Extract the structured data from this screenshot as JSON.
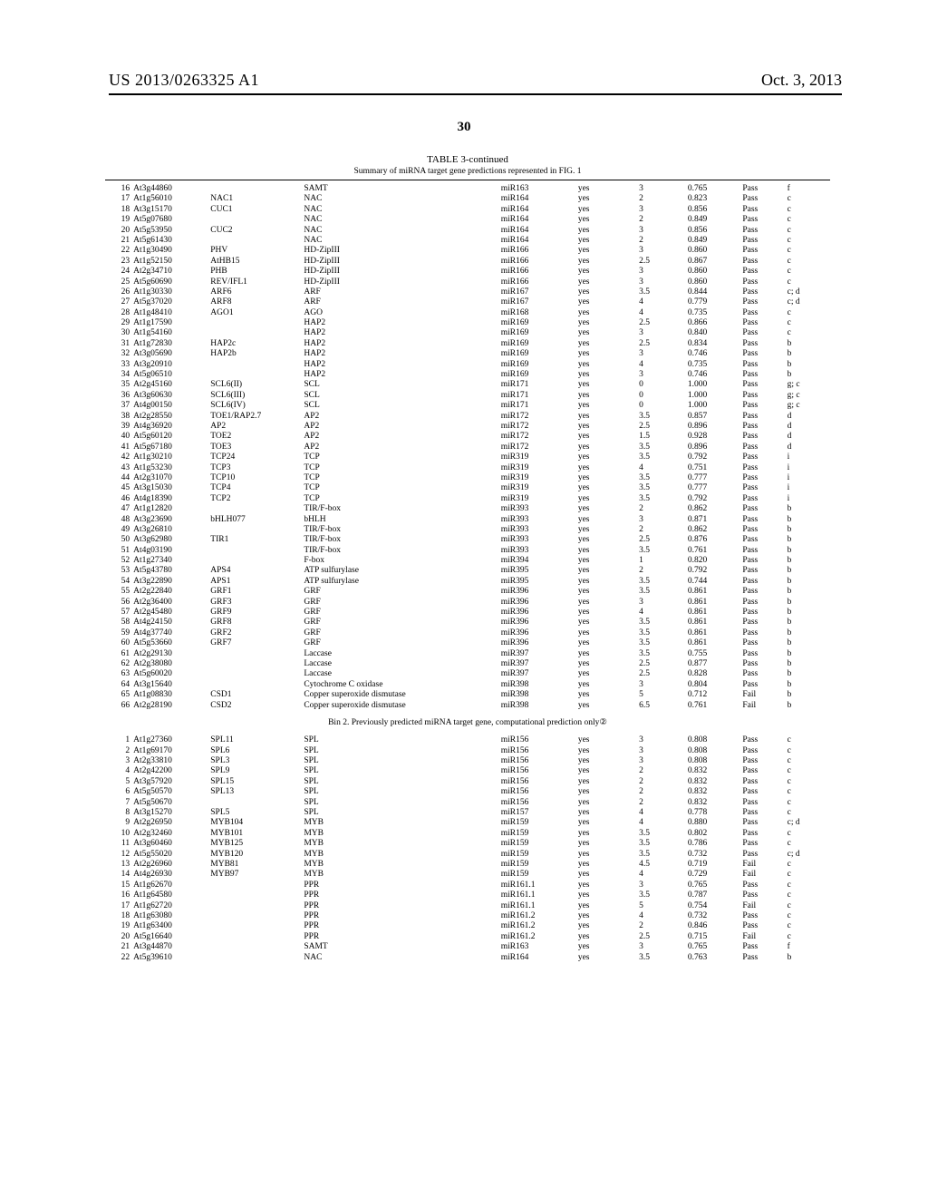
{
  "header": {
    "pub_num": "US 2013/0263325 A1",
    "pub_date": "Oct. 3, 2013",
    "page_num": "30"
  },
  "table": {
    "hdr": "TABLE 3-continued",
    "sub": "Summary of miRNA target gene predictions represented in FIG. 1",
    "section2": "Bin 2. Previously predicted miRNA target gene, computational prediction only②",
    "rows1": [
      {
        "i": "16",
        "g": "At3g44860",
        "a": "",
        "f": "SAMT",
        "m": "miR163",
        "c": "yes",
        "s1": "3",
        "s2": "0.765",
        "p": "Pass",
        "r": "f"
      },
      {
        "i": "17",
        "g": "At1g56010",
        "a": "NAC1",
        "f": "NAC",
        "m": "miR164",
        "c": "yes",
        "s1": "2",
        "s2": "0.823",
        "p": "Pass",
        "r": "c"
      },
      {
        "i": "18",
        "g": "At3g15170",
        "a": "CUC1",
        "f": "NAC",
        "m": "miR164",
        "c": "yes",
        "s1": "3",
        "s2": "0.856",
        "p": "Pass",
        "r": "c"
      },
      {
        "i": "19",
        "g": "At5g07680",
        "a": "",
        "f": "NAC",
        "m": "miR164",
        "c": "yes",
        "s1": "2",
        "s2": "0.849",
        "p": "Pass",
        "r": "c"
      },
      {
        "i": "20",
        "g": "At5g53950",
        "a": "CUC2",
        "f": "NAC",
        "m": "miR164",
        "c": "yes",
        "s1": "3",
        "s2": "0.856",
        "p": "Pass",
        "r": "c"
      },
      {
        "i": "21",
        "g": "At5g61430",
        "a": "",
        "f": "NAC",
        "m": "miR164",
        "c": "yes",
        "s1": "2",
        "s2": "0.849",
        "p": "Pass",
        "r": "c"
      },
      {
        "i": "22",
        "g": "At1g30490",
        "a": "PHV",
        "f": "HD-ZipIII",
        "m": "miR166",
        "c": "yes",
        "s1": "3",
        "s2": "0.860",
        "p": "Pass",
        "r": "c"
      },
      {
        "i": "23",
        "g": "At1g52150",
        "a": "AtHB15",
        "f": "HD-ZipIII",
        "m": "miR166",
        "c": "yes",
        "s1": "2.5",
        "s2": "0.867",
        "p": "Pass",
        "r": "c"
      },
      {
        "i": "24",
        "g": "At2g34710",
        "a": "PHB",
        "f": "HD-ZipIII",
        "m": "miR166",
        "c": "yes",
        "s1": "3",
        "s2": "0.860",
        "p": "Pass",
        "r": "c"
      },
      {
        "i": "25",
        "g": "At5g60690",
        "a": "REV/IFL1",
        "f": "HD-ZipIII",
        "m": "miR166",
        "c": "yes",
        "s1": "3",
        "s2": "0.860",
        "p": "Pass",
        "r": "c"
      },
      {
        "i": "26",
        "g": "At1g30330",
        "a": "ARF6",
        "f": "ARF",
        "m": "miR167",
        "c": "yes",
        "s1": "3.5",
        "s2": "0.844",
        "p": "Pass",
        "r": "c; d"
      },
      {
        "i": "27",
        "g": "At5g37020",
        "a": "ARF8",
        "f": "ARF",
        "m": "miR167",
        "c": "yes",
        "s1": "4",
        "s2": "0.779",
        "p": "Pass",
        "r": "c; d"
      },
      {
        "i": "28",
        "g": "At1g48410",
        "a": "AGO1",
        "f": "AGO",
        "m": "miR168",
        "c": "yes",
        "s1": "4",
        "s2": "0.735",
        "p": "Pass",
        "r": "c"
      },
      {
        "i": "29",
        "g": "At1g17590",
        "a": "",
        "f": "HAP2",
        "m": "miR169",
        "c": "yes",
        "s1": "2.5",
        "s2": "0.866",
        "p": "Pass",
        "r": "c"
      },
      {
        "i": "30",
        "g": "At1g54160",
        "a": "",
        "f": "HAP2",
        "m": "miR169",
        "c": "yes",
        "s1": "3",
        "s2": "0.840",
        "p": "Pass",
        "r": "c"
      },
      {
        "i": "31",
        "g": "At1g72830",
        "a": "HAP2c",
        "f": "HAP2",
        "m": "miR169",
        "c": "yes",
        "s1": "2.5",
        "s2": "0.834",
        "p": "Pass",
        "r": "b"
      },
      {
        "i": "32",
        "g": "At3g05690",
        "a": "HAP2b",
        "f": "HAP2",
        "m": "miR169",
        "c": "yes",
        "s1": "3",
        "s2": "0.746",
        "p": "Pass",
        "r": "b"
      },
      {
        "i": "33",
        "g": "At3g20910",
        "a": "",
        "f": "HAP2",
        "m": "miR169",
        "c": "yes",
        "s1": "4",
        "s2": "0.735",
        "p": "Pass",
        "r": "b"
      },
      {
        "i": "34",
        "g": "At5g06510",
        "a": "",
        "f": "HAP2",
        "m": "miR169",
        "c": "yes",
        "s1": "3",
        "s2": "0.746",
        "p": "Pass",
        "r": "b"
      },
      {
        "i": "35",
        "g": "At2g45160",
        "a": "SCL6(II)",
        "f": "SCL",
        "m": "miR171",
        "c": "yes",
        "s1": "0",
        "s2": "1.000",
        "p": "Pass",
        "r": "g; c"
      },
      {
        "i": "36",
        "g": "At3g60630",
        "a": "SCL6(III)",
        "f": "SCL",
        "m": "miR171",
        "c": "yes",
        "s1": "0",
        "s2": "1.000",
        "p": "Pass",
        "r": "g; c"
      },
      {
        "i": "37",
        "g": "At4g00150",
        "a": "SCL6(IV)",
        "f": "SCL",
        "m": "miR171",
        "c": "yes",
        "s1": "0",
        "s2": "1.000",
        "p": "Pass",
        "r": "g; c"
      },
      {
        "i": "38",
        "g": "At2g28550",
        "a": "TOE1/RAP2.7",
        "f": "AP2",
        "m": "miR172",
        "c": "yes",
        "s1": "3.5",
        "s2": "0.857",
        "p": "Pass",
        "r": "d"
      },
      {
        "i": "39",
        "g": "At4g36920",
        "a": "AP2",
        "f": "AP2",
        "m": "miR172",
        "c": "yes",
        "s1": "2.5",
        "s2": "0.896",
        "p": "Pass",
        "r": "d"
      },
      {
        "i": "40",
        "g": "At5g60120",
        "a": "TOE2",
        "f": "AP2",
        "m": "miR172",
        "c": "yes",
        "s1": "1.5",
        "s2": "0.928",
        "p": "Pass",
        "r": "d"
      },
      {
        "i": "41",
        "g": "At5g67180",
        "a": "TOE3",
        "f": "AP2",
        "m": "miR172",
        "c": "yes",
        "s1": "3.5",
        "s2": "0.896",
        "p": "Pass",
        "r": "d"
      },
      {
        "i": "42",
        "g": "At1g30210",
        "a": "TCP24",
        "f": "TCP",
        "m": "miR319",
        "c": "yes",
        "s1": "3.5",
        "s2": "0.792",
        "p": "Pass",
        "r": "i"
      },
      {
        "i": "43",
        "g": "At1g53230",
        "a": "TCP3",
        "f": "TCP",
        "m": "miR319",
        "c": "yes",
        "s1": "4",
        "s2": "0.751",
        "p": "Pass",
        "r": "i"
      },
      {
        "i": "44",
        "g": "At2g31070",
        "a": "TCP10",
        "f": "TCP",
        "m": "miR319",
        "c": "yes",
        "s1": "3.5",
        "s2": "0.777",
        "p": "Pass",
        "r": "i"
      },
      {
        "i": "45",
        "g": "At3g15030",
        "a": "TCP4",
        "f": "TCP",
        "m": "miR319",
        "c": "yes",
        "s1": "3.5",
        "s2": "0.777",
        "p": "Pass",
        "r": "i"
      },
      {
        "i": "46",
        "g": "At4g18390",
        "a": "TCP2",
        "f": "TCP",
        "m": "miR319",
        "c": "yes",
        "s1": "3.5",
        "s2": "0.792",
        "p": "Pass",
        "r": "i"
      },
      {
        "i": "47",
        "g": "At1g12820",
        "a": "",
        "f": "TIR/F-box",
        "m": "miR393",
        "c": "yes",
        "s1": "2",
        "s2": "0.862",
        "p": "Pass",
        "r": "b"
      },
      {
        "i": "48",
        "g": "At3g23690",
        "a": "bHLH077",
        "f": "bHLH",
        "m": "miR393",
        "c": "yes",
        "s1": "3",
        "s2": "0.871",
        "p": "Pass",
        "r": "b"
      },
      {
        "i": "49",
        "g": "At3g26810",
        "a": "",
        "f": "TIR/F-box",
        "m": "miR393",
        "c": "yes",
        "s1": "2",
        "s2": "0.862",
        "p": "Pass",
        "r": "b"
      },
      {
        "i": "50",
        "g": "At3g62980",
        "a": "TIR1",
        "f": "TIR/F-box",
        "m": "miR393",
        "c": "yes",
        "s1": "2.5",
        "s2": "0.876",
        "p": "Pass",
        "r": "b"
      },
      {
        "i": "51",
        "g": "At4g03190",
        "a": "",
        "f": "TIR/F-box",
        "m": "miR393",
        "c": "yes",
        "s1": "3.5",
        "s2": "0.761",
        "p": "Pass",
        "r": "b"
      },
      {
        "i": "52",
        "g": "At1g27340",
        "a": "",
        "f": "F-box",
        "m": "miR394",
        "c": "yes",
        "s1": "1",
        "s2": "0.820",
        "p": "Pass",
        "r": "b"
      },
      {
        "i": "53",
        "g": "At5g43780",
        "a": "APS4",
        "f": "ATP sulfurylase",
        "m": "miR395",
        "c": "yes",
        "s1": "2",
        "s2": "0.792",
        "p": "Pass",
        "r": "b"
      },
      {
        "i": "54",
        "g": "At3g22890",
        "a": "APS1",
        "f": "ATP sulfurylase",
        "m": "miR395",
        "c": "yes",
        "s1": "3.5",
        "s2": "0.744",
        "p": "Pass",
        "r": "b"
      },
      {
        "i": "55",
        "g": "At2g22840",
        "a": "GRF1",
        "f": "GRF",
        "m": "miR396",
        "c": "yes",
        "s1": "3.5",
        "s2": "0.861",
        "p": "Pass",
        "r": "b"
      },
      {
        "i": "56",
        "g": "At2g36400",
        "a": "GRF3",
        "f": "GRF",
        "m": "miR396",
        "c": "yes",
        "s1": "3",
        "s2": "0.861",
        "p": "Pass",
        "r": "b"
      },
      {
        "i": "57",
        "g": "At2g45480",
        "a": "GRF9",
        "f": "GRF",
        "m": "miR396",
        "c": "yes",
        "s1": "4",
        "s2": "0.861",
        "p": "Pass",
        "r": "b"
      },
      {
        "i": "58",
        "g": "At4g24150",
        "a": "GRF8",
        "f": "GRF",
        "m": "miR396",
        "c": "yes",
        "s1": "3.5",
        "s2": "0.861",
        "p": "Pass",
        "r": "b"
      },
      {
        "i": "59",
        "g": "At4g37740",
        "a": "GRF2",
        "f": "GRF",
        "m": "miR396",
        "c": "yes",
        "s1": "3.5",
        "s2": "0.861",
        "p": "Pass",
        "r": "b"
      },
      {
        "i": "60",
        "g": "At5g53660",
        "a": "GRF7",
        "f": "GRF",
        "m": "miR396",
        "c": "yes",
        "s1": "3.5",
        "s2": "0.861",
        "p": "Pass",
        "r": "b"
      },
      {
        "i": "61",
        "g": "At2g29130",
        "a": "",
        "f": "Laccase",
        "m": "miR397",
        "c": "yes",
        "s1": "3.5",
        "s2": "0.755",
        "p": "Pass",
        "r": "b"
      },
      {
        "i": "62",
        "g": "At2g38080",
        "a": "",
        "f": "Laccase",
        "m": "miR397",
        "c": "yes",
        "s1": "2.5",
        "s2": "0.877",
        "p": "Pass",
        "r": "b"
      },
      {
        "i": "63",
        "g": "At5g60020",
        "a": "",
        "f": "Laccase",
        "m": "miR397",
        "c": "yes",
        "s1": "2.5",
        "s2": "0.828",
        "p": "Pass",
        "r": "b"
      },
      {
        "i": "64",
        "g": "At3g15640",
        "a": "",
        "f": "Cytochrome C oxidase",
        "m": "miR398",
        "c": "yes",
        "s1": "3",
        "s2": "0.804",
        "p": "Pass",
        "r": "b"
      },
      {
        "i": "65",
        "g": "At1g08830",
        "a": "CSD1",
        "f": "Copper superoxide dismutase",
        "m": "miR398",
        "c": "yes",
        "s1": "5",
        "s2": "0.712",
        "p": "Fail",
        "r": "b"
      },
      {
        "i": "66",
        "g": "At2g28190",
        "a": "CSD2",
        "f": "Copper superoxide dismutase",
        "m": "miR398",
        "c": "yes",
        "s1": "6.5",
        "s2": "0.761",
        "p": "Fail",
        "r": "b"
      }
    ],
    "rows2": [
      {
        "i": "1",
        "g": "At1g27360",
        "a": "SPL11",
        "f": "SPL",
        "m": "miR156",
        "c": "yes",
        "s1": "3",
        "s2": "0.808",
        "p": "Pass",
        "r": "c"
      },
      {
        "i": "2",
        "g": "At1g69170",
        "a": "SPL6",
        "f": "SPL",
        "m": "miR156",
        "c": "yes",
        "s1": "3",
        "s2": "0.808",
        "p": "Pass",
        "r": "c"
      },
      {
        "i": "3",
        "g": "At2g33810",
        "a": "SPL3",
        "f": "SPL",
        "m": "miR156",
        "c": "yes",
        "s1": "3",
        "s2": "0.808",
        "p": "Pass",
        "r": "c"
      },
      {
        "i": "4",
        "g": "At2g42200",
        "a": "SPL9",
        "f": "SPL",
        "m": "miR156",
        "c": "yes",
        "s1": "2",
        "s2": "0.832",
        "p": "Pass",
        "r": "c"
      },
      {
        "i": "5",
        "g": "At3g57920",
        "a": "SPL15",
        "f": "SPL",
        "m": "miR156",
        "c": "yes",
        "s1": "2",
        "s2": "0.832",
        "p": "Pass",
        "r": "c"
      },
      {
        "i": "6",
        "g": "At5g50570",
        "a": "SPL13",
        "f": "SPL",
        "m": "miR156",
        "c": "yes",
        "s1": "2",
        "s2": "0.832",
        "p": "Pass",
        "r": "c"
      },
      {
        "i": "7",
        "g": "At5g50670",
        "a": "",
        "f": "SPL",
        "m": "miR156",
        "c": "yes",
        "s1": "2",
        "s2": "0.832",
        "p": "Pass",
        "r": "c"
      },
      {
        "i": "8",
        "g": "At3g15270",
        "a": "SPL5",
        "f": "SPL",
        "m": "miR157",
        "c": "yes",
        "s1": "4",
        "s2": "0.778",
        "p": "Pass",
        "r": "c"
      },
      {
        "i": "9",
        "g": "At2g26950",
        "a": "MYB104",
        "f": "MYB",
        "m": "miR159",
        "c": "yes",
        "s1": "4",
        "s2": "0.880",
        "p": "Pass",
        "r": "c; d"
      },
      {
        "i": "10",
        "g": "At2g32460",
        "a": "MYB101",
        "f": "MYB",
        "m": "miR159",
        "c": "yes",
        "s1": "3.5",
        "s2": "0.802",
        "p": "Pass",
        "r": "c"
      },
      {
        "i": "11",
        "g": "At3g60460",
        "a": "MYB125",
        "f": "MYB",
        "m": "miR159",
        "c": "yes",
        "s1": "3.5",
        "s2": "0.786",
        "p": "Pass",
        "r": "c"
      },
      {
        "i": "12",
        "g": "At5g55020",
        "a": "MYB120",
        "f": "MYB",
        "m": "miR159",
        "c": "yes",
        "s1": "3.5",
        "s2": "0.732",
        "p": "Pass",
        "r": "c; d"
      },
      {
        "i": "13",
        "g": "At2g26960",
        "a": "MYB81",
        "f": "MYB",
        "m": "miR159",
        "c": "yes",
        "s1": "4.5",
        "s2": "0.719",
        "p": "Fail",
        "r": "c"
      },
      {
        "i": "14",
        "g": "At4g26930",
        "a": "MYB97",
        "f": "MYB",
        "m": "miR159",
        "c": "yes",
        "s1": "4",
        "s2": "0.729",
        "p": "Fail",
        "r": "c"
      },
      {
        "i": "15",
        "g": "At1g62670",
        "a": "",
        "f": "PPR",
        "m": "miR161.1",
        "c": "yes",
        "s1": "3",
        "s2": "0.765",
        "p": "Pass",
        "r": "c"
      },
      {
        "i": "16",
        "g": "At1g64580",
        "a": "",
        "f": "PPR",
        "m": "miR161.1",
        "c": "yes",
        "s1": "3.5",
        "s2": "0.787",
        "p": "Pass",
        "r": "c"
      },
      {
        "i": "17",
        "g": "At1g62720",
        "a": "",
        "f": "PPR",
        "m": "miR161.1",
        "c": "yes",
        "s1": "5",
        "s2": "0.754",
        "p": "Fail",
        "r": "c"
      },
      {
        "i": "18",
        "g": "At1g63080",
        "a": "",
        "f": "PPR",
        "m": "miR161.2",
        "c": "yes",
        "s1": "4",
        "s2": "0.732",
        "p": "Pass",
        "r": "c"
      },
      {
        "i": "19",
        "g": "At1g63400",
        "a": "",
        "f": "PPR",
        "m": "miR161.2",
        "c": "yes",
        "s1": "2",
        "s2": "0.846",
        "p": "Pass",
        "r": "c"
      },
      {
        "i": "20",
        "g": "At5g16640",
        "a": "",
        "f": "PPR",
        "m": "miR161.2",
        "c": "yes",
        "s1": "2.5",
        "s2": "0.715",
        "p": "Fail",
        "r": "c"
      },
      {
        "i": "21",
        "g": "At3g44870",
        "a": "",
        "f": "SAMT",
        "m": "miR163",
        "c": "yes",
        "s1": "3",
        "s2": "0.765",
        "p": "Pass",
        "r": "f"
      },
      {
        "i": "22",
        "g": "At5g39610",
        "a": "",
        "f": "NAC",
        "m": "miR164",
        "c": "yes",
        "s1": "3.5",
        "s2": "0.763",
        "p": "Pass",
        "r": "b"
      }
    ]
  }
}
